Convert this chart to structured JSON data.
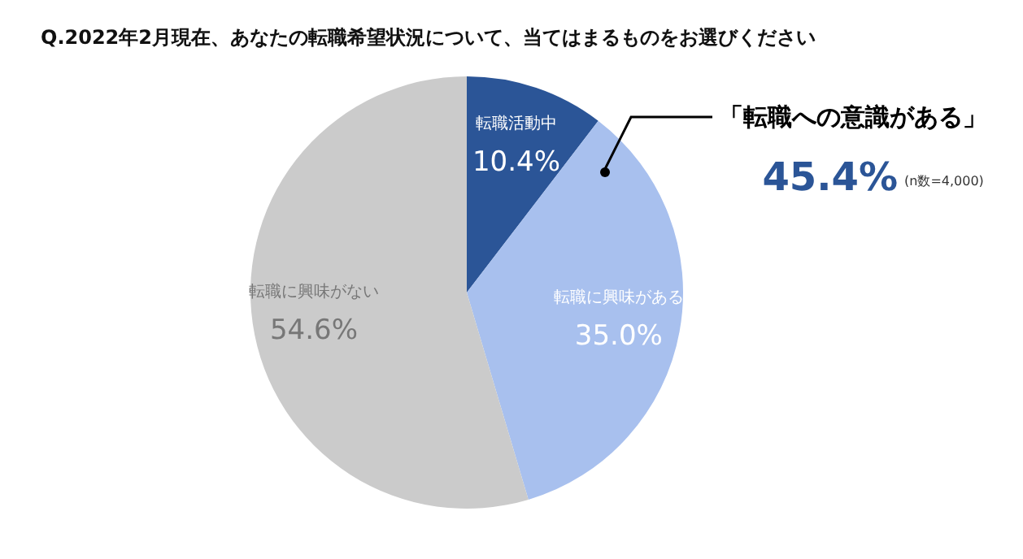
{
  "chart_data": {
    "type": "pie",
    "title": "Q.2022年2月現在、あなたの転職希望状況について、当てはまるものをお選びください",
    "categories": [
      "転職活動中",
      "転職に興味がある",
      "転職に興味がない"
    ],
    "values": [
      10.4,
      35.0,
      54.6
    ],
    "colors": [
      "#2b5597",
      "#a8c0ee",
      "#cbcbcb"
    ],
    "value_labels": [
      "10.4%",
      "35.0%",
      "54.6%"
    ],
    "annotations": [
      "「転職への意識がある」",
      "45.4%",
      "(n数=4,000)"
    ]
  }
}
